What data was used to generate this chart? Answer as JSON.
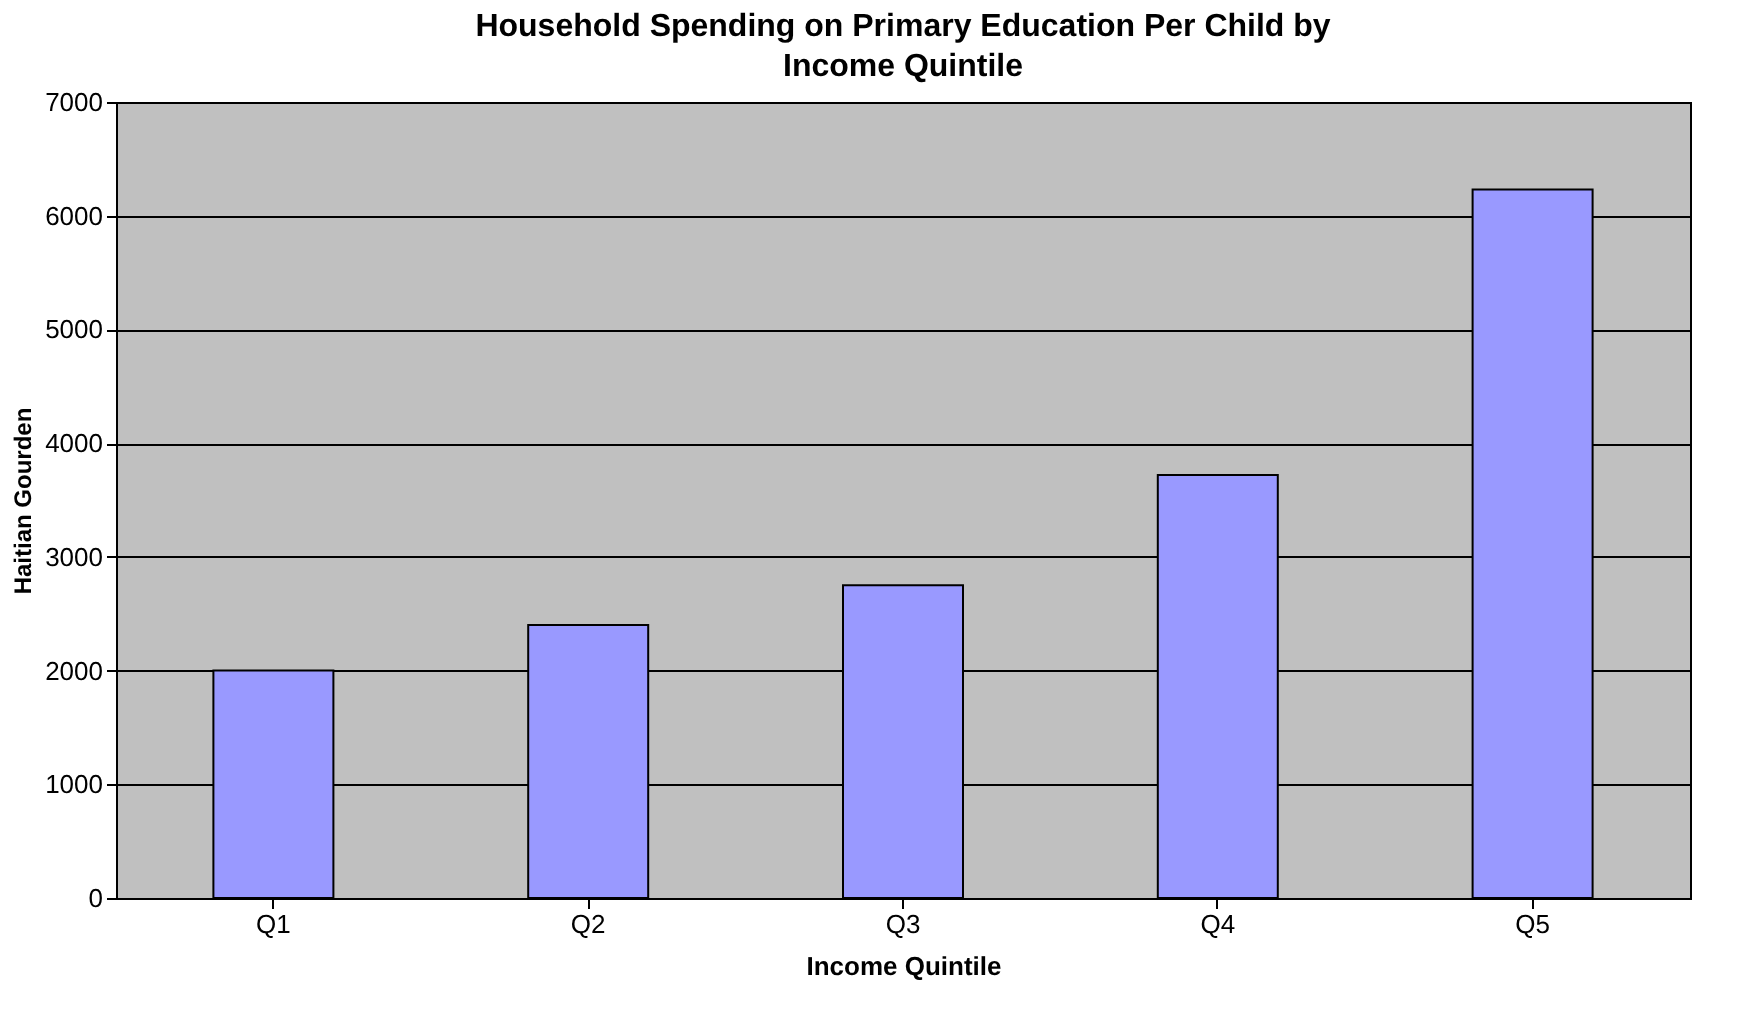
{
  "chart_data": {
    "type": "bar",
    "title": "Household Spending on Primary Education Per Child by Income Quintile",
    "xlabel": "Income Quintile",
    "ylabel": "Haitian Gourden",
    "categories": [
      "Q1",
      "Q2",
      "Q3",
      "Q4",
      "Q5"
    ],
    "values": [
      2000,
      2400,
      2750,
      3720,
      6230
    ],
    "color": "#9999ff",
    "ylim": [
      0,
      7000
    ],
    "yticks": [
      0,
      1000,
      2000,
      3000,
      4000,
      5000,
      6000,
      7000
    ],
    "grid": "y",
    "legend": false
  }
}
